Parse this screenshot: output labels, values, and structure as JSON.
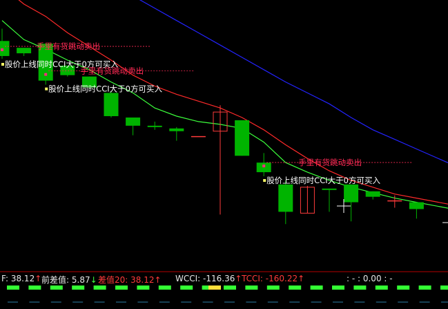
{
  "chart_data": {
    "type": "candlestick",
    "candles": [
      {
        "open": 34.5,
        "high": 35.4,
        "low": 33.2,
        "close": 33.4
      },
      {
        "open": 34.0,
        "high": 34.0,
        "low": 33.4,
        "close": 33.6
      },
      {
        "open": 34.3,
        "high": 34.3,
        "low": 31.3,
        "close": 31.6
      },
      {
        "open": 32.7,
        "high": 32.7,
        "low": 31.9,
        "close": 32.0
      },
      {
        "open": 31.9,
        "high": 31.9,
        "low": 31.0,
        "close": 31.1
      },
      {
        "open": 30.7,
        "high": 30.8,
        "low": 28.9,
        "close": 29.0
      },
      {
        "open": 28.9,
        "high": 28.9,
        "low": 27.6,
        "close": 28.3
      },
      {
        "open": 28.3,
        "high": 28.6,
        "low": 28.0,
        "close": 28.2
      },
      {
        "open": 28.1,
        "high": 28.2,
        "low": 27.2,
        "close": 27.9
      },
      {
        "open": 27.5,
        "high": 27.5,
        "low": 27.5,
        "close": 27.5
      },
      {
        "open": 27.9,
        "high": 29.8,
        "low": 21.8,
        "close": 29.3
      },
      {
        "open": 28.7,
        "high": 28.7,
        "low": 26.1,
        "close": 26.1
      },
      {
        "open": 25.6,
        "high": 26.3,
        "low": 24.6,
        "close": 24.9
      },
      {
        "open": 24.0,
        "high": 24.3,
        "low": 21.1,
        "close": 22.0
      },
      {
        "open": 21.9,
        "high": 23.9,
        "low": 21.9,
        "close": 23.8
      },
      {
        "open": 23.7,
        "high": 23.7,
        "low": 22.0,
        "close": 23.6
      },
      {
        "open": 24.0,
        "high": 24.0,
        "low": 21.3,
        "close": 22.7
      },
      {
        "open": 23.5,
        "high": 23.5,
        "low": 22.9,
        "close": 23.1
      },
      {
        "open": 22.8,
        "high": 23.2,
        "low": 22.3,
        "close": 22.8
      },
      {
        "open": 22.7,
        "high": 22.7,
        "low": 21.5,
        "close": 22.2
      }
    ],
    "ma_lines": [
      {
        "color": "#3cff3c",
        "values": [
          36.0,
          34.6,
          33.9,
          33.1,
          32.4,
          31.5,
          30.7,
          29.6,
          29.0,
          28.6,
          28.4,
          28.1,
          27.1,
          25.6,
          24.9,
          24.3,
          23.8,
          23.4,
          23.0,
          22.7
        ]
      },
      {
        "color": "#ff2a2a",
        "values": [
          38.5,
          37.2,
          36.3,
          35.1,
          34.1,
          33.1,
          32.0,
          31.2,
          30.6,
          30.1,
          29.6,
          28.9,
          28.0,
          26.9,
          25.9,
          25.0,
          24.3,
          23.8,
          23.3,
          23.0
        ]
      },
      {
        "color": "#2323ff",
        "values": [
          43.1,
          42.2,
          41.4,
          40.5,
          39.6,
          38.7,
          37.8,
          36.9,
          36.0,
          35.1,
          34.2,
          33.3,
          32.4,
          31.5,
          30.7,
          29.9,
          28.9,
          28.0,
          27.3,
          26.6
        ]
      }
    ],
    "signals": [
      {
        "index": 0,
        "sell": "手里有货跳动卖出",
        "buy": "股价上线同时CCI大于0方可买入"
      },
      {
        "index": 2,
        "sell": "手里有货跳动卖出",
        "buy": "股价上线同时CCI大于0方可买入"
      },
      {
        "index": 12,
        "sell": "手里有货跳动卖出",
        "buy": "股价上线同时CCI大于0方可买入"
      }
    ]
  },
  "indicator_bar": {
    "f_label": "F:",
    "f_value": "38.12",
    "f_arrow": "↑",
    "qcz_label": "前差值:",
    "qcz_value": "5.87",
    "qcz_arrow": "↓",
    "cz20_label": "差值20:",
    "cz20_value": "38.12",
    "cz20_arrow": "↑",
    "wcci_label": "WCCI:",
    "wcci_value": "-116.36",
    "wcci_arrow": "↑",
    "tcci_label": "TCCI:",
    "tcci_value": "-160.22",
    "tcci_arrow": "↑",
    "time_text": ": - : 0.00 : -"
  },
  "colors": {
    "background": "#000000",
    "up": "#ff3b3b",
    "down": "#00b400",
    "sell_text": "#ff2a55",
    "buy_text": "#ffffff",
    "marker_buy": "#ffff66",
    "marker_sell": "#ff2a80"
  }
}
